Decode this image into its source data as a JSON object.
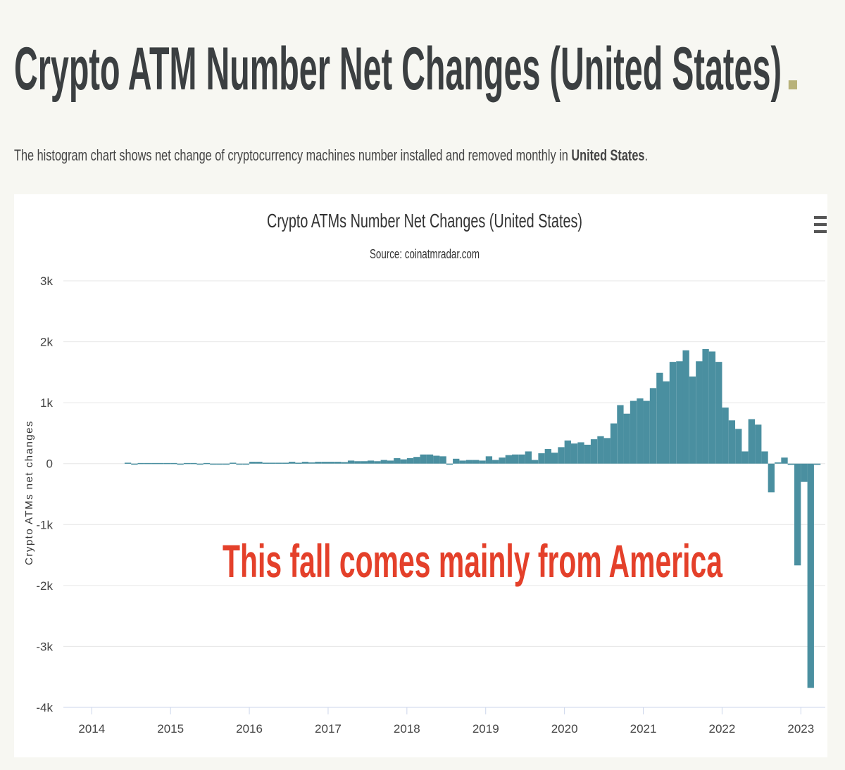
{
  "header": {
    "title": "Crypto ATM Number Net Changes (United States)",
    "title_mark": ".",
    "subtitle": [
      "The histogram chart shows net change of cryptocurrency machines number installed and removed monthly in ",
      "United States",
      "."
    ]
  },
  "chart_data": {
    "type": "bar",
    "title": "Crypto ATMs Number Net Changes (United States)",
    "subtitle": "Source: coinatmradar.com",
    "y_label": "Crypto ATMs net changes",
    "annotation": "This fall comes mainly from America",
    "color": "#4a8fa0",
    "grid": true,
    "x": [
      2014.417,
      2014.5,
      2014.583,
      2014.667,
      2014.75,
      2014.833,
      2014.917,
      2015,
      2015.083,
      2015.167,
      2015.25,
      2015.333,
      2015.417,
      2015.5,
      2015.583,
      2015.667,
      2015.75,
      2015.833,
      2015.917,
      2016,
      2016.083,
      2016.167,
      2016.25,
      2016.333,
      2016.417,
      2016.5,
      2016.583,
      2016.667,
      2016.75,
      2016.833,
      2016.917,
      2017,
      2017.083,
      2017.167,
      2017.25,
      2017.333,
      2017.417,
      2017.5,
      2017.583,
      2017.667,
      2017.75,
      2017.833,
      2017.917,
      2018,
      2018.083,
      2018.167,
      2018.25,
      2018.333,
      2018.417,
      2018.5,
      2018.583,
      2018.667,
      2018.75,
      2018.833,
      2018.917,
      2019,
      2019.083,
      2019.167,
      2019.25,
      2019.333,
      2019.417,
      2019.5,
      2019.583,
      2019.667,
      2019.75,
      2019.833,
      2019.917,
      2020,
      2020.083,
      2020.167,
      2020.25,
      2020.333,
      2020.417,
      2020.5,
      2020.583,
      2020.667,
      2020.75,
      2020.833,
      2020.917,
      2021,
      2021.083,
      2021.167,
      2021.25,
      2021.333,
      2021.417,
      2021.5,
      2021.583,
      2021.667,
      2021.75,
      2021.833,
      2021.917,
      2022,
      2022.083,
      2022.167,
      2022.25,
      2022.333,
      2022.417,
      2022.5,
      2022.583,
      2022.667,
      2022.75,
      2022.833,
      2022.917,
      2023,
      2023.083,
      2023.167
    ],
    "values": [
      15,
      0,
      10,
      10,
      10,
      10,
      10,
      10,
      0,
      10,
      10,
      0,
      10,
      0,
      0,
      0,
      15,
      0,
      0,
      30,
      30,
      15,
      15,
      15,
      15,
      30,
      15,
      30,
      20,
      30,
      30,
      30,
      30,
      25,
      50,
      40,
      40,
      50,
      40,
      60,
      50,
      90,
      70,
      90,
      110,
      150,
      150,
      130,
      120,
      0,
      80,
      50,
      60,
      60,
      50,
      120,
      60,
      100,
      140,
      150,
      150,
      200,
      60,
      170,
      240,
      180,
      270,
      380,
      330,
      350,
      310,
      400,
      450,
      420,
      660,
      960,
      820,
      1030,
      1070,
      1030,
      1240,
      1490,
      1350,
      1670,
      1680,
      1860,
      1430,
      1680,
      1880,
      1840,
      1670,
      920,
      710,
      570,
      200,
      730,
      640,
      200,
      -470,
      20,
      100,
      -20,
      -1670,
      -300,
      -3680,
      -20
    ],
    "bar_width": 0.0833,
    "xlim": [
      2013.64,
      2023.31
    ],
    "xticks": [
      2014,
      2015,
      2016,
      2017,
      2018,
      2019,
      2020,
      2021,
      2022,
      2023
    ],
    "ylim": [
      -4000,
      3000
    ],
    "yticks": [
      {
        "value": -4000,
        "label": "-4k"
      },
      {
        "value": -3000,
        "label": "-3k"
      },
      {
        "value": -2000,
        "label": "-2k"
      },
      {
        "value": -1000,
        "label": "-1k"
      },
      0,
      {
        "value": 1000,
        "label": "1k"
      },
      {
        "value": 2000,
        "label": "2k"
      },
      {
        "value": 3000,
        "label": "3k"
      }
    ]
  }
}
